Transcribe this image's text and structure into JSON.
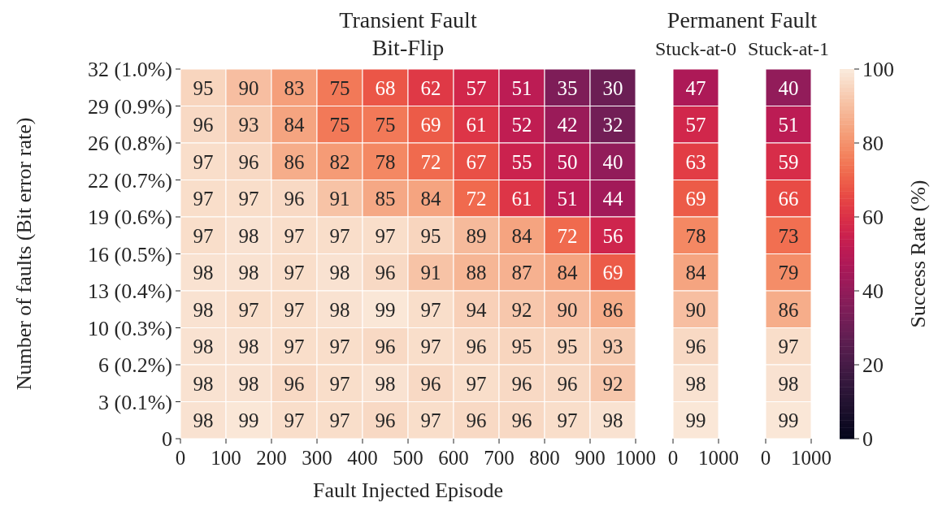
{
  "chart_data": [
    {
      "type": "heatmap",
      "title": "Transient Fault",
      "subtitle": "Bit-Flip",
      "xlabel": "Fault Injected Episode",
      "ylabel": "Number of faults (Bit error rate)",
      "xlim": [
        0,
        1000
      ],
      "xticks": [
        0,
        100,
        200,
        300,
        400,
        500,
        600,
        700,
        800,
        900,
        1000
      ],
      "y_categories": [
        "32 (1.0%)",
        "29 (0.9%)",
        "26 (0.8%)",
        "22 (0.7%)",
        "19 (0.6%)",
        "16 (0.5%)",
        "13 (0.4%)",
        "10 (0.3%)",
        "6 (0.2%)",
        "3 (0.1%)"
      ],
      "annotations": [
        "0"
      ],
      "data_labels": true,
      "cells": [
        [
          95,
          90,
          83,
          75,
          68,
          62,
          57,
          51,
          35,
          30
        ],
        [
          96,
          93,
          84,
          75,
          75,
          69,
          61,
          52,
          42,
          32
        ],
        [
          97,
          96,
          86,
          82,
          78,
          72,
          67,
          55,
          50,
          40
        ],
        [
          97,
          97,
          96,
          91,
          85,
          84,
          72,
          61,
          51,
          44
        ],
        [
          97,
          98,
          97,
          97,
          97,
          95,
          89,
          84,
          72,
          56
        ],
        [
          98,
          98,
          97,
          98,
          96,
          91,
          88,
          87,
          84,
          69
        ],
        [
          98,
          97,
          97,
          98,
          99,
          97,
          94,
          92,
          90,
          86
        ],
        [
          98,
          98,
          97,
          97,
          96,
          97,
          96,
          95,
          95,
          93
        ],
        [
          98,
          98,
          96,
          97,
          98,
          96,
          97,
          96,
          96,
          92
        ],
        [
          98,
          99,
          97,
          97,
          96,
          97,
          96,
          96,
          97,
          98
        ]
      ]
    },
    {
      "type": "heatmap",
      "title": "Permanent Fault",
      "subtitle": "Stuck-at-0",
      "xlim": [
        0,
        1000
      ],
      "xticks": [
        0,
        1000
      ],
      "y_categories": [
        null,
        null,
        null,
        null,
        null,
        null,
        null,
        null,
        null,
        null
      ],
      "tick_labels": "x",
      "data_labels": true,
      "cells": [
        [
          47
        ],
        [
          57
        ],
        [
          63
        ],
        [
          69
        ],
        [
          78
        ],
        [
          84
        ],
        [
          90
        ],
        [
          96
        ],
        [
          98
        ],
        [
          99
        ]
      ]
    },
    {
      "type": "heatmap",
      "subtitle": "Stuck-at-1",
      "xlim": [
        0,
        1000
      ],
      "xticks": [
        0,
        1000
      ],
      "y_categories": [
        null,
        null,
        null,
        null,
        null,
        null,
        null,
        null,
        null,
        null
      ],
      "tick_labels": "x",
      "data_labels": true,
      "clim": [
        0,
        100
      ],
      "cticks": [
        0,
        20,
        40,
        60,
        80,
        100
      ],
      "clabel": "Success Rate (%)",
      "cells": [
        [
          40
        ],
        [
          51
        ],
        [
          59
        ],
        [
          66
        ],
        [
          73
        ],
        [
          79
        ],
        [
          86
        ],
        [
          97
        ],
        [
          98
        ],
        [
          99
        ]
      ]
    }
  ]
}
